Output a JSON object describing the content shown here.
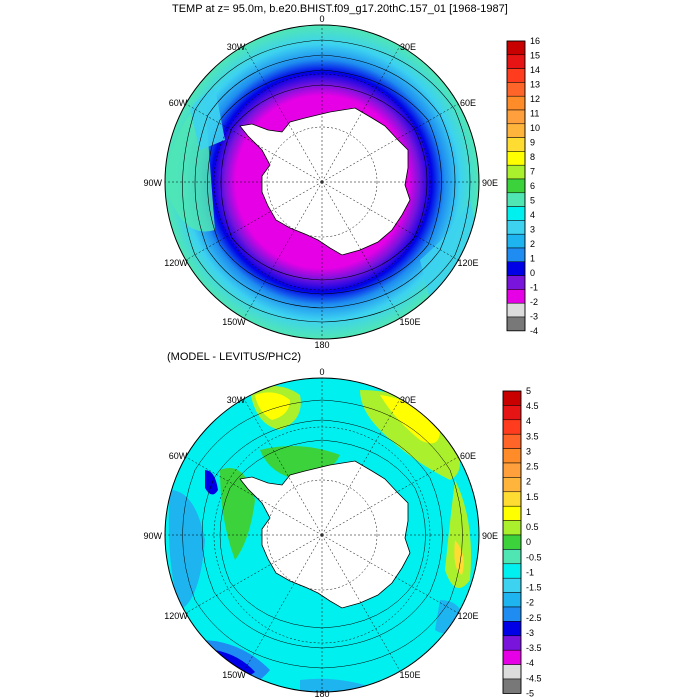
{
  "maps": [
    {
      "title": "TEMP at z=  95.0m, b.e20.BHIST.f09_g17.20thC.157_01 [1968-1987]",
      "lon_labels": {
        "n": "0",
        "nne": "30E",
        "ene": "60E",
        "e": "90E",
        "ese": "120E",
        "sse": "150E",
        "s": "180",
        "ssw": "150W",
        "wsw": "120W",
        "w": "90W",
        "wnw": "60W",
        "nnw": "30W"
      },
      "colorbar": {
        "labels": [
          "16",
          "15",
          "14",
          "13",
          "12",
          "11",
          "10",
          "9",
          "8",
          "7",
          "6",
          "5",
          "4",
          "3",
          "2",
          "1",
          "0",
          "-1",
          "-2",
          "-3",
          "-4"
        ],
        "colors": [
          "#c80000",
          "#e61414",
          "#ff3c1e",
          "#ff6428",
          "#ff8c28",
          "#ffa03c",
          "#ffb43c",
          "#ffdc32",
          "#ffff00",
          "#aaf02d",
          "#3cd23c",
          "#50e6b4",
          "#00f0f0",
          "#3cd2f0",
          "#1eb4f0",
          "#1e8cf0",
          "#0000e6",
          "#7814dc",
          "#e600e6",
          "#dcdcdc",
          "#787878"
        ]
      }
    },
    {
      "title": "(MODEL - LEVITUS/PHC2)",
      "lon_labels": {
        "n": "0",
        "nne": "30E",
        "ene": "60E",
        "e": "90E",
        "ese": "120E",
        "sse": "150E",
        "s": "180",
        "ssw": "150W",
        "wsw": "120W",
        "w": "90W",
        "wnw": "60W",
        "nnw": "30W"
      },
      "colorbar": {
        "labels": [
          "5",
          "4.5",
          "4",
          "3.5",
          "3",
          "2.5",
          "2",
          "1.5",
          "1",
          "0.5",
          "0",
          "-0.5",
          "-1",
          "-1.5",
          "-2",
          "-2.5",
          "-3",
          "-3.5",
          "-4",
          "-4.5",
          "-5"
        ],
        "colors": [
          "#c80000",
          "#e61414",
          "#ff3c1e",
          "#ff6428",
          "#ff8c28",
          "#ffa03c",
          "#ffb43c",
          "#ffdc32",
          "#ffff00",
          "#aaf02d",
          "#3cd23c",
          "#50e6b4",
          "#00f0f0",
          "#3cd2f0",
          "#1eb4f0",
          "#1e8cf0",
          "#0000e6",
          "#7814dc",
          "#e600e6",
          "#dcdcdc",
          "#787878"
        ]
      }
    }
  ]
}
